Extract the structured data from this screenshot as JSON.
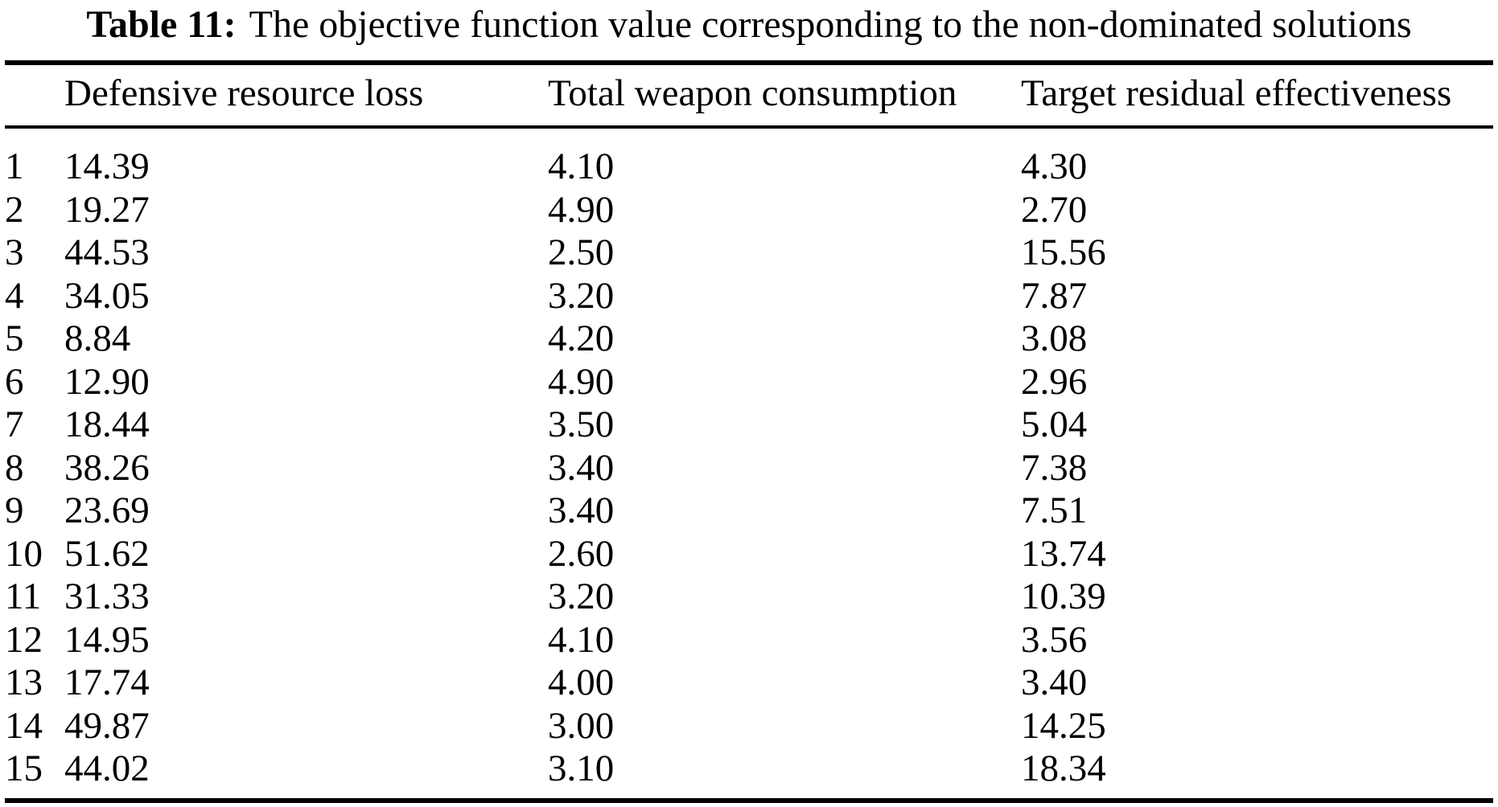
{
  "page": {
    "background_color": "#ffffff",
    "text_color": "#000000"
  },
  "table": {
    "caption": {
      "label": "Table 11:",
      "text": "The objective function value corresponding to the non-dominated solutions"
    },
    "columns": [
      "Defensive resource loss",
      "Total weapon consumption",
      "Target residual effectiveness"
    ],
    "row_fields": [
      "no",
      "defensive_resource_loss",
      "total_weapon_consumption",
      "target_residual_effectiveness"
    ],
    "rows": [
      {
        "no": "1",
        "defensive_resource_loss": "14.39",
        "total_weapon_consumption": "4.10",
        "target_residual_effectiveness": "4.30"
      },
      {
        "no": "2",
        "defensive_resource_loss": "19.27",
        "total_weapon_consumption": "4.90",
        "target_residual_effectiveness": "2.70"
      },
      {
        "no": "3",
        "defensive_resource_loss": "44.53",
        "total_weapon_consumption": "2.50",
        "target_residual_effectiveness": "15.56"
      },
      {
        "no": "4",
        "defensive_resource_loss": "34.05",
        "total_weapon_consumption": "3.20",
        "target_residual_effectiveness": "7.87"
      },
      {
        "no": "5",
        "defensive_resource_loss": "8.84",
        "total_weapon_consumption": "4.20",
        "target_residual_effectiveness": "3.08"
      },
      {
        "no": "6",
        "defensive_resource_loss": "12.90",
        "total_weapon_consumption": "4.90",
        "target_residual_effectiveness": "2.96"
      },
      {
        "no": "7",
        "defensive_resource_loss": "18.44",
        "total_weapon_consumption": "3.50",
        "target_residual_effectiveness": "5.04"
      },
      {
        "no": "8",
        "defensive_resource_loss": "38.26",
        "total_weapon_consumption": "3.40",
        "target_residual_effectiveness": "7.38"
      },
      {
        "no": "9",
        "defensive_resource_loss": "23.69",
        "total_weapon_consumption": "3.40",
        "target_residual_effectiveness": "7.51"
      },
      {
        "no": "10",
        "defensive_resource_loss": "51.62",
        "total_weapon_consumption": "2.60",
        "target_residual_effectiveness": "13.74"
      },
      {
        "no": "11",
        "defensive_resource_loss": "31.33",
        "total_weapon_consumption": "3.20",
        "target_residual_effectiveness": "10.39"
      },
      {
        "no": "12",
        "defensive_resource_loss": "14.95",
        "total_weapon_consumption": "4.10",
        "target_residual_effectiveness": "3.56"
      },
      {
        "no": "13",
        "defensive_resource_loss": "17.74",
        "total_weapon_consumption": "4.00",
        "target_residual_effectiveness": "3.40"
      },
      {
        "no": "14",
        "defensive_resource_loss": "49.87",
        "total_weapon_consumption": "3.00",
        "target_residual_effectiveness": "14.25"
      },
      {
        "no": "15",
        "defensive_resource_loss": "44.02",
        "total_weapon_consumption": "3.10",
        "target_residual_effectiveness": "18.34"
      }
    ]
  }
}
